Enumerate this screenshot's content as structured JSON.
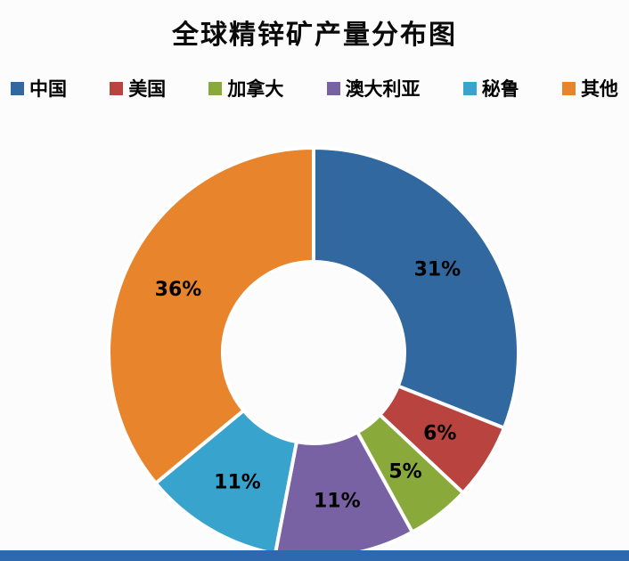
{
  "chart_data": {
    "type": "pie",
    "subtype": "donut",
    "title": "全球精锌矿产量分布图",
    "categories": [
      "中国",
      "美国",
      "加拿大",
      "澳大利亚",
      "秘鲁",
      "其他"
    ],
    "values": [
      31,
      6,
      5,
      11,
      11,
      36
    ],
    "labels": [
      "31%",
      "6%",
      "5%",
      "11%",
      "11%",
      "36%"
    ],
    "colors": [
      "#31689F",
      "#B9433E",
      "#89A93B",
      "#7862A4",
      "#38A3CC",
      "#E8842B"
    ],
    "legend_position": "top",
    "start_angle_deg": 0,
    "direction": "clockwise",
    "inner_radius_ratio": 0.445,
    "slice_gap_color": "#FFFFFF"
  },
  "bottom_bar_color": "#2E68AE"
}
